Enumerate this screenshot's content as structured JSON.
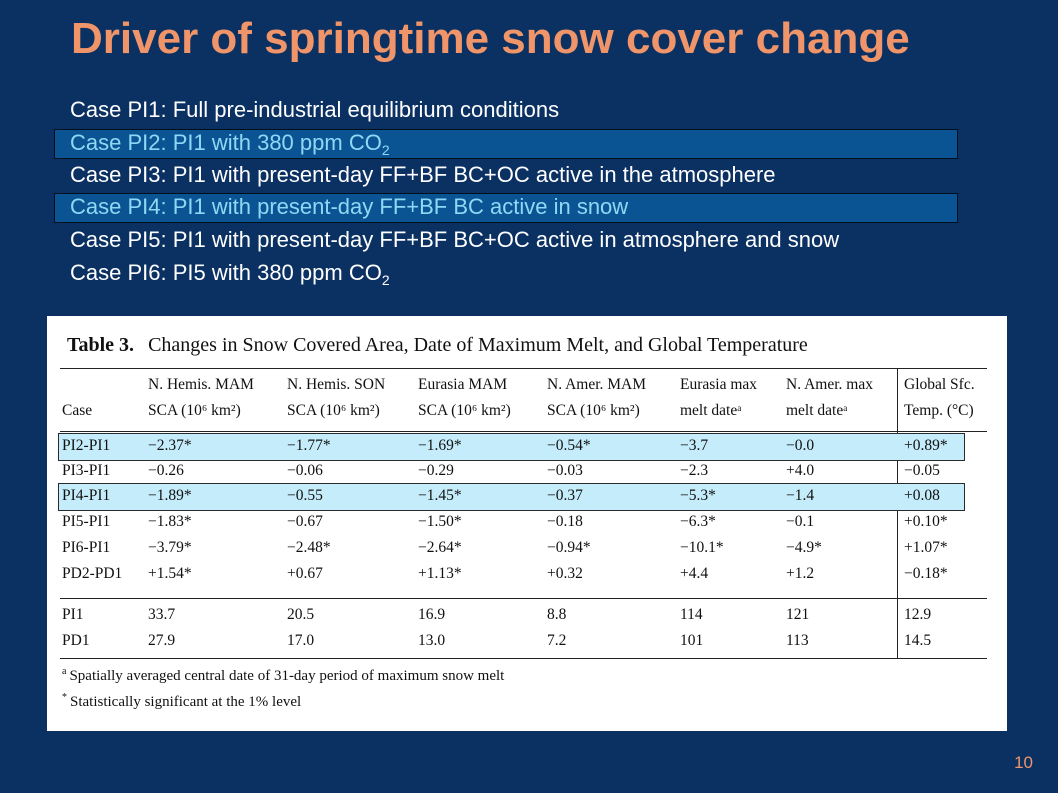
{
  "slide": {
    "title": "Driver of springtime snow cover change",
    "page_number": "10",
    "accent_color": "#f0956a",
    "background_color": "#0b3163",
    "highlight_color": "#0b5494"
  },
  "cases": [
    {
      "text": "Case PI1: Full pre-industrial equilibrium conditions",
      "sub": "",
      "highlighted": false
    },
    {
      "text": "Case PI2: PI1 with 380 ppm CO",
      "sub": "2",
      "highlighted": true
    },
    {
      "text": "Case PI3: PI1 with present-day FF+BF BC+OC active in the atmosphere",
      "sub": "",
      "highlighted": false
    },
    {
      "text": "Case PI4: PI1 with present-day FF+BF BC active in snow",
      "sub": "",
      "highlighted": true
    },
    {
      "text": "Case PI5: PI1 with present-day FF+BF BC+OC active in atmosphere and snow",
      "sub": "",
      "highlighted": false
    },
    {
      "text": "Case PI6: PI5 with 380 ppm CO",
      "sub": "2",
      "highlighted": false
    }
  ],
  "table": {
    "label": "Table 3.",
    "caption": "Changes in Snow Covered Area, Date of Maximum Melt, and Global Temperature",
    "headers_top": [
      "",
      "N. Hemis. MAM",
      "N. Hemis. SON",
      "Eurasia MAM",
      "N. Amer. MAM",
      "Eurasia max",
      "N. Amer. max",
      "Global Sfc."
    ],
    "headers_bottom": [
      "Case",
      "SCA (10⁶ km²)",
      "SCA (10⁶ km²)",
      "SCA (10⁶ km²)",
      "SCA (10⁶ km²)",
      "melt dateᵃ",
      "melt dateᵃ",
      "Temp. (°C)"
    ],
    "rows": [
      {
        "cells": [
          "PI2-PI1",
          "−2.37*",
          "−1.77*",
          "−1.69*",
          "−0.54*",
          "−3.7",
          "−0.0",
          "+0.89*"
        ],
        "highlighted": true
      },
      {
        "cells": [
          "PI3-PI1",
          "−0.26",
          "−0.06",
          "−0.29",
          "−0.03",
          "−2.3",
          "+4.0",
          "−0.05"
        ],
        "highlighted": false
      },
      {
        "cells": [
          "PI4-PI1",
          "−1.89*",
          "−0.55",
          "−1.45*",
          "−0.37",
          "−5.3*",
          "−1.4",
          "+0.08"
        ],
        "highlighted": true
      },
      {
        "cells": [
          "PI5-PI1",
          "−1.83*",
          "−0.67",
          "−1.50*",
          "−0.18",
          "−6.3*",
          "−0.1",
          "+0.10*"
        ],
        "highlighted": false
      },
      {
        "cells": [
          "PI6-PI1",
          "−3.79*",
          "−2.48*",
          "−2.64*",
          "−0.94*",
          "−10.1*",
          "−4.9*",
          "+1.07*"
        ],
        "highlighted": false
      },
      {
        "cells": [
          "PD2-PD1",
          "+1.54*",
          "+0.67",
          "+1.13*",
          "+0.32",
          "+4.4",
          "+1.2",
          "−0.18*"
        ],
        "highlighted": false
      }
    ],
    "baseline_rows": [
      {
        "cells": [
          "PI1",
          "33.7",
          "20.5",
          "16.9",
          "8.8",
          "114",
          "121",
          "12.9"
        ]
      },
      {
        "cells": [
          "PD1",
          "27.9",
          "17.0",
          "13.0",
          "7.2",
          "101",
          "113",
          "14.5"
        ]
      }
    ],
    "notes": [
      {
        "mark": "a",
        "text": "Spatially averaged central date of 31-day period of maximum snow melt"
      },
      {
        "mark": "*",
        "text": "Statistically significant at the 1% level"
      }
    ],
    "row_highlight_color": "#c5ecfa"
  }
}
